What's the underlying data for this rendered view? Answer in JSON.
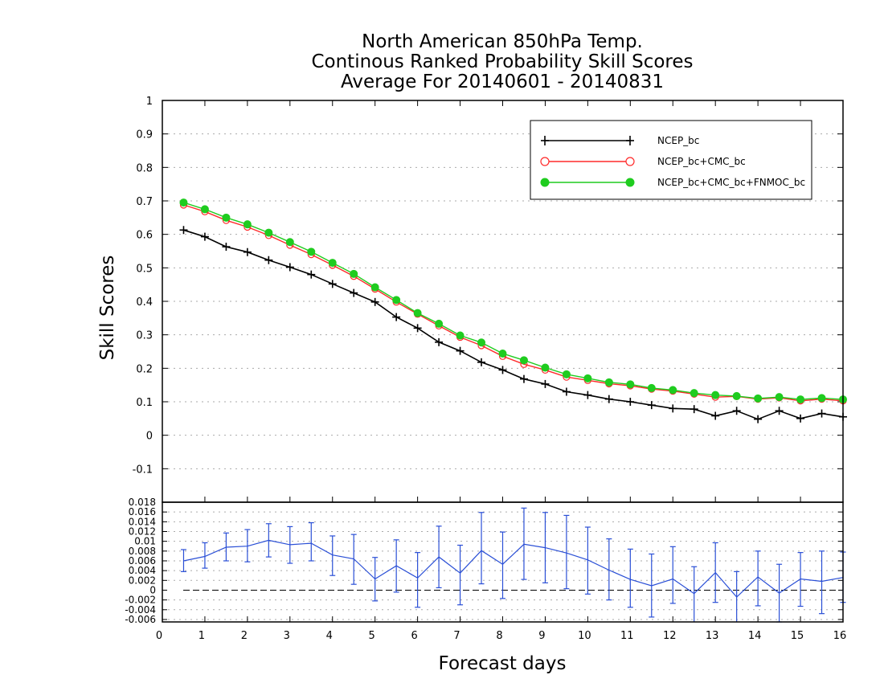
{
  "chart_data": [
    {
      "type": "line",
      "title_lines": [
        "North American 850hPa Temp.",
        "Continous Ranked Probability Skill Scores",
        "Average For 20140601 - 20140831"
      ],
      "xlabel": "Forecast days",
      "ylabel": "Skill Scores",
      "xlim": [
        0,
        16
      ],
      "ylim": [
        -0.2,
        1
      ],
      "x_ticks": [
        "0",
        "1",
        "2",
        "3",
        "4",
        "5",
        "6",
        "7",
        "8",
        "9",
        "10",
        "11",
        "12",
        "13",
        "14",
        "15",
        "16"
      ],
      "y_ticks": [
        "0",
        "0.1",
        "0.2",
        "0.3",
        "0.4",
        "0.5",
        "0.6",
        "0.7",
        "0.8",
        "0.9",
        "1"
      ],
      "y_ticks_neg": [
        "-0.1"
      ],
      "grid": true,
      "legend_position": "top-right",
      "x": [
        0.5,
        1,
        1.5,
        2,
        2.5,
        3,
        3.5,
        4,
        4.5,
        5,
        5.5,
        6,
        6.5,
        7,
        7.5,
        8,
        8.5,
        9,
        9.5,
        10,
        10.5,
        11,
        11.5,
        12,
        12.5,
        13,
        13.5,
        14,
        14.5,
        15,
        15.5,
        16
      ],
      "series": [
        {
          "name": "NCEP_bc",
          "color": "#000000",
          "marker": "plus",
          "values": [
            0.613,
            0.593,
            0.563,
            0.547,
            0.523,
            0.502,
            0.48,
            0.452,
            0.425,
            0.398,
            0.353,
            0.32,
            0.278,
            0.252,
            0.218,
            0.195,
            0.168,
            0.153,
            0.13,
            0.12,
            0.108,
            0.1,
            0.09,
            0.08,
            0.078,
            0.058,
            0.073,
            0.048,
            0.073,
            0.05,
            0.065,
            0.055
          ]
        },
        {
          "name": "NCEP_bc+CMC_bc",
          "color": "#ff2a2a",
          "marker": "open-circle",
          "values": [
            0.688,
            0.668,
            0.642,
            0.622,
            0.597,
            0.568,
            0.54,
            0.508,
            0.475,
            0.437,
            0.398,
            0.362,
            0.327,
            0.293,
            0.268,
            0.236,
            0.212,
            0.195,
            0.174,
            0.164,
            0.154,
            0.148,
            0.138,
            0.132,
            0.123,
            0.114,
            0.116,
            0.108,
            0.112,
            0.103,
            0.108,
            0.103
          ]
        },
        {
          "name": "NCEP_bc+CMC_bc+FNMOC_bc",
          "color": "#1fcc1f",
          "marker": "filled-circle",
          "values": [
            0.695,
            0.675,
            0.65,
            0.63,
            0.605,
            0.577,
            0.548,
            0.515,
            0.482,
            0.442,
            0.404,
            0.365,
            0.333,
            0.298,
            0.277,
            0.244,
            0.224,
            0.202,
            0.182,
            0.17,
            0.158,
            0.152,
            0.141,
            0.135,
            0.126,
            0.12,
            0.117,
            0.11,
            0.114,
            0.107,
            0.111,
            0.107
          ]
        }
      ]
    },
    {
      "type": "line",
      "title": "",
      "ylim": [
        -0.0065,
        0.018
      ],
      "y_ticks": [
        "-0.006",
        "-0.004",
        "-0.002",
        "0",
        "0.002",
        "0.004",
        "0.006",
        "0.008",
        "0.01",
        "0.012",
        "0.014",
        "0.016",
        "0.018"
      ],
      "zero_line": "dashed",
      "series": [
        {
          "color": "#2a4fd6",
          "marker": "error-bar",
          "x": [
            0.5,
            1,
            1.5,
            2,
            2.5,
            3,
            3.5,
            4,
            4.5,
            5,
            5.5,
            6,
            6.5,
            7,
            7.5,
            8,
            8.5,
            9,
            9.5,
            10,
            10.5,
            11,
            11.5,
            12,
            12.5,
            13,
            13.5,
            14,
            14.5,
            15,
            15.5,
            16
          ],
          "values": [
            0.006,
            0.0069,
            0.0088,
            0.009,
            0.0102,
            0.0093,
            0.0096,
            0.0072,
            0.0064,
            0.0023,
            0.005,
            0.0025,
            0.0068,
            0.0035,
            0.0081,
            0.0053,
            0.0094,
            0.0087,
            0.0076,
            0.0062,
            0.0041,
            0.0022,
            0.0009,
            0.0023,
            -0.0007,
            0.0036,
            -0.0014,
            0.0027,
            -0.0006,
            0.0023,
            0.0018,
            0.0026
          ],
          "err_low": [
            0.0038,
            0.0045,
            0.006,
            0.0058,
            0.0068,
            0.0055,
            0.006,
            0.003,
            0.0012,
            -0.0022,
            -0.0004,
            -0.0035,
            0.0005,
            -0.003,
            0.0013,
            -0.0017,
            0.0022,
            0.0015,
            0.0003,
            -0.0008,
            -0.002,
            -0.0035,
            -0.0055,
            -0.0027,
            -0.007,
            -0.0025,
            -0.007,
            -0.0032,
            -0.0065,
            -0.0033,
            -0.0048,
            -0.0025
          ],
          "err_high": [
            0.0083,
            0.0097,
            0.0117,
            0.0124,
            0.0136,
            0.013,
            0.0138,
            0.0111,
            0.0114,
            0.0067,
            0.0103,
            0.0077,
            0.0131,
            0.0092,
            0.0159,
            0.0119,
            0.0168,
            0.0159,
            0.0153,
            0.0129,
            0.0105,
            0.0084,
            0.0074,
            0.0089,
            0.0048,
            0.0097,
            0.0038,
            0.008,
            0.0053,
            0.0077,
            0.008,
            0.0078
          ]
        }
      ]
    }
  ]
}
